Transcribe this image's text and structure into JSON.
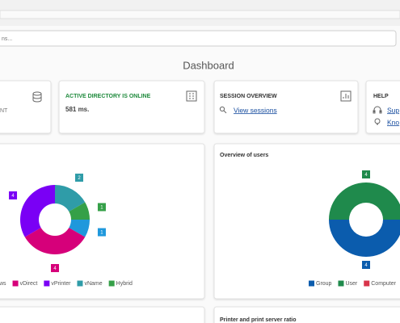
{
  "search": {
    "placeholder": "ns..."
  },
  "header": {
    "title": "Dashboard"
  },
  "cards": [
    {
      "text": "NT"
    },
    {
      "title": "ACTIVE DIRECTORY IS ONLINE",
      "value": "581 ms."
    },
    {
      "title": "SESSION OVERVIEW",
      "link": "View sessions"
    },
    {
      "title": "HELP",
      "links": [
        "Sup",
        "Kno"
      ]
    }
  ],
  "chart_data": [
    {
      "type": "pie",
      "donut": true,
      "categories": [
        "ws",
        "vDirect",
        "vPrinter",
        "vName",
        "Hybrid"
      ],
      "values": [
        1,
        4,
        4,
        2,
        1
      ],
      "colors": [
        "#1f98dc",
        "#d6007a",
        "#7a00f5",
        "#2f9ca8",
        "#35a048"
      ]
    },
    {
      "type": "pie",
      "donut": true,
      "title": "Overview of users",
      "categories": [
        "Group",
        "User",
        "Computer"
      ],
      "values": [
        4,
        4,
        0
      ],
      "colors": [
        "#0b5cad",
        "#1f8a4c",
        "#d8344a"
      ]
    }
  ],
  "bottom": {
    "title": "Printer and print server ratio"
  }
}
